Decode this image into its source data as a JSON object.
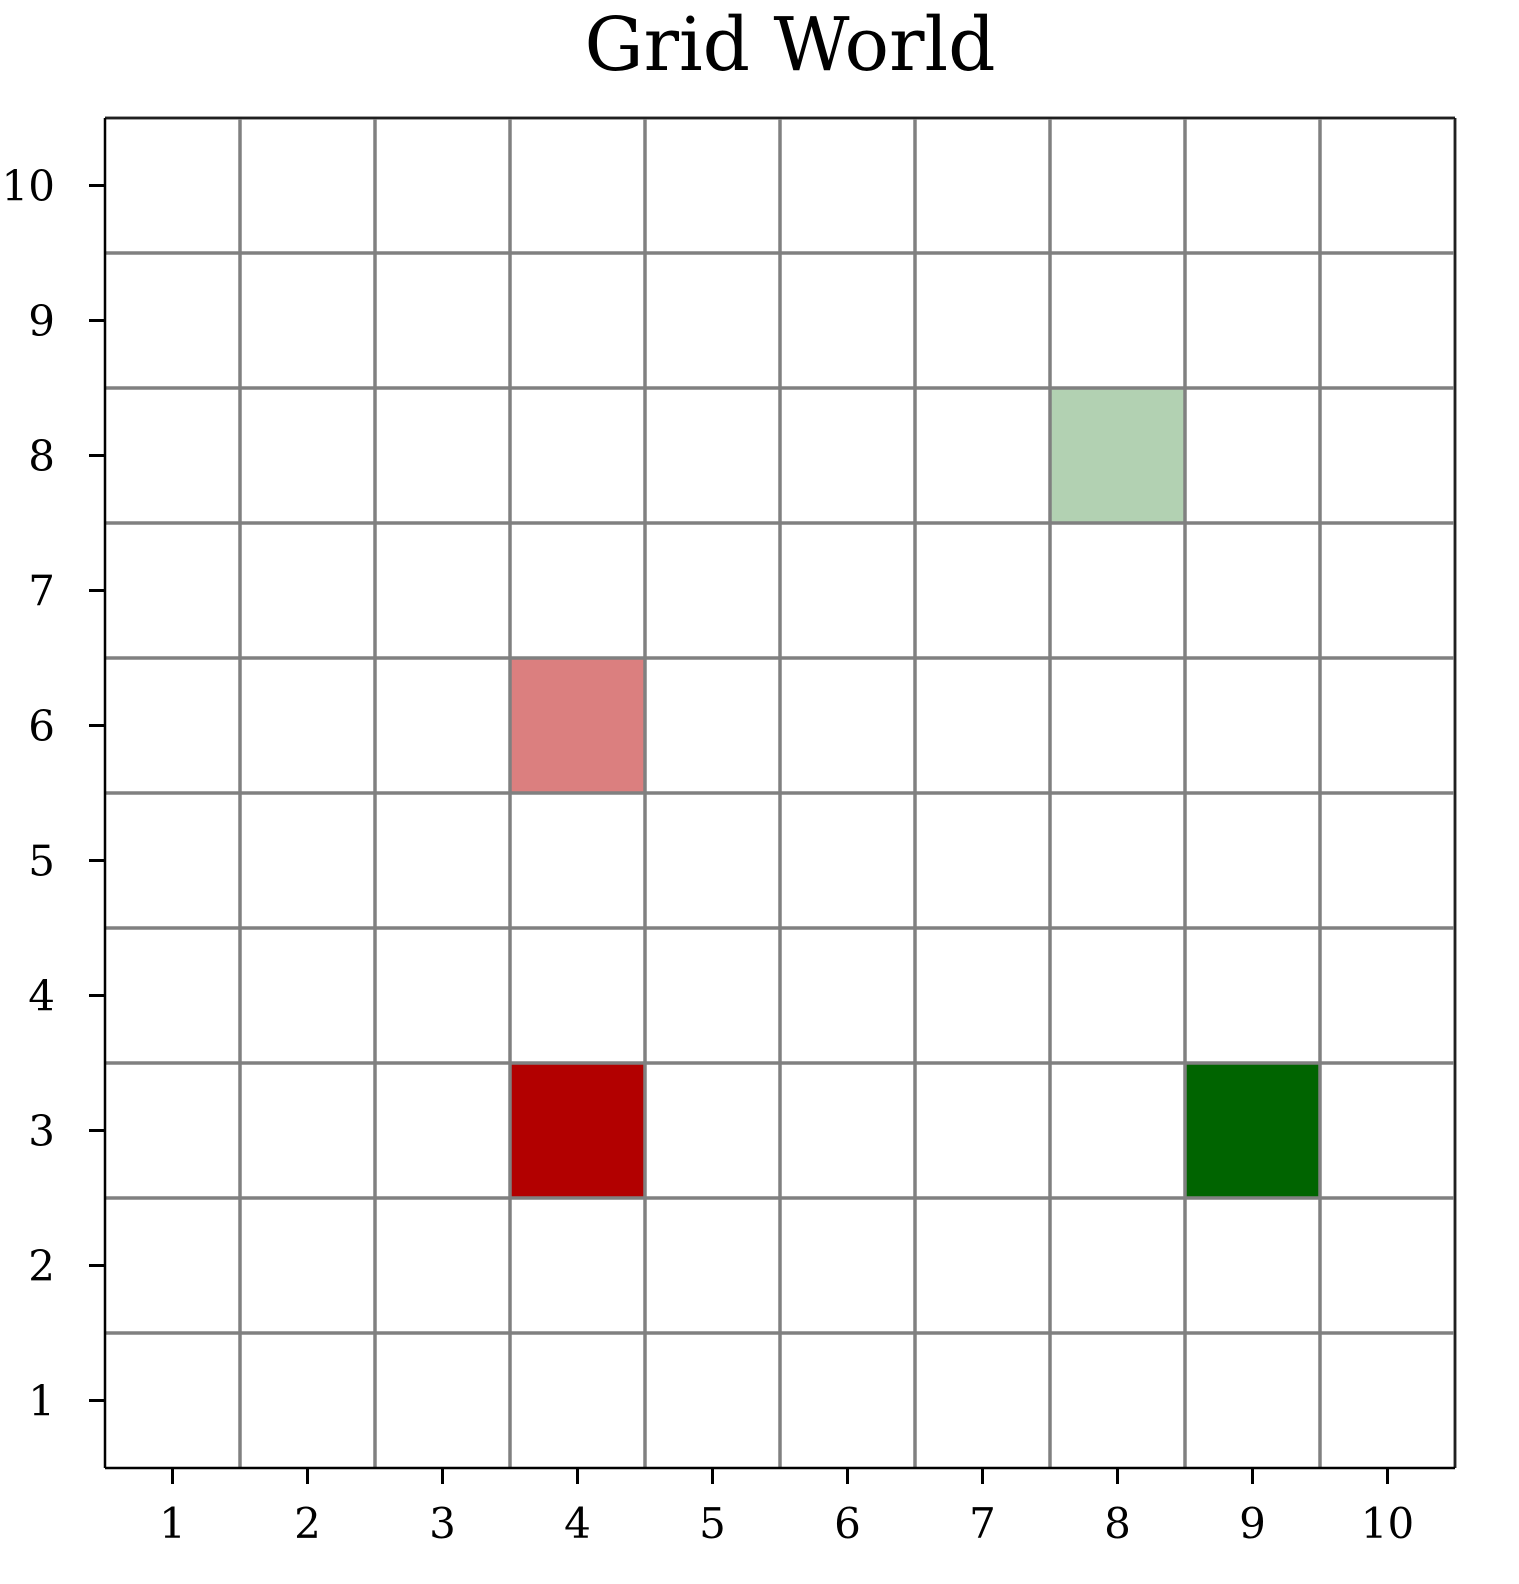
{
  "chart_data": {
    "type": "heatmap",
    "title": "Grid World",
    "xlabel": "",
    "ylabel": "",
    "xlim": [
      0.5,
      10.5
    ],
    "ylim": [
      0.5,
      10.5
    ],
    "x_ticks": [
      "1",
      "2",
      "3",
      "4",
      "5",
      "6",
      "7",
      "8",
      "9",
      "10"
    ],
    "y_ticks": [
      "1",
      "2",
      "3",
      "4",
      "5",
      "6",
      "7",
      "8",
      "9",
      "10"
    ],
    "grid": true,
    "grid_color": "#808080",
    "cells": [
      {
        "x": 4,
        "y": 6,
        "color": "#db7f7f"
      },
      {
        "x": 8,
        "y": 8,
        "color": "#b2d1b2"
      },
      {
        "x": 4,
        "y": 3,
        "color": "#b20000"
      },
      {
        "x": 9,
        "y": 3,
        "color": "#006400"
      }
    ]
  }
}
